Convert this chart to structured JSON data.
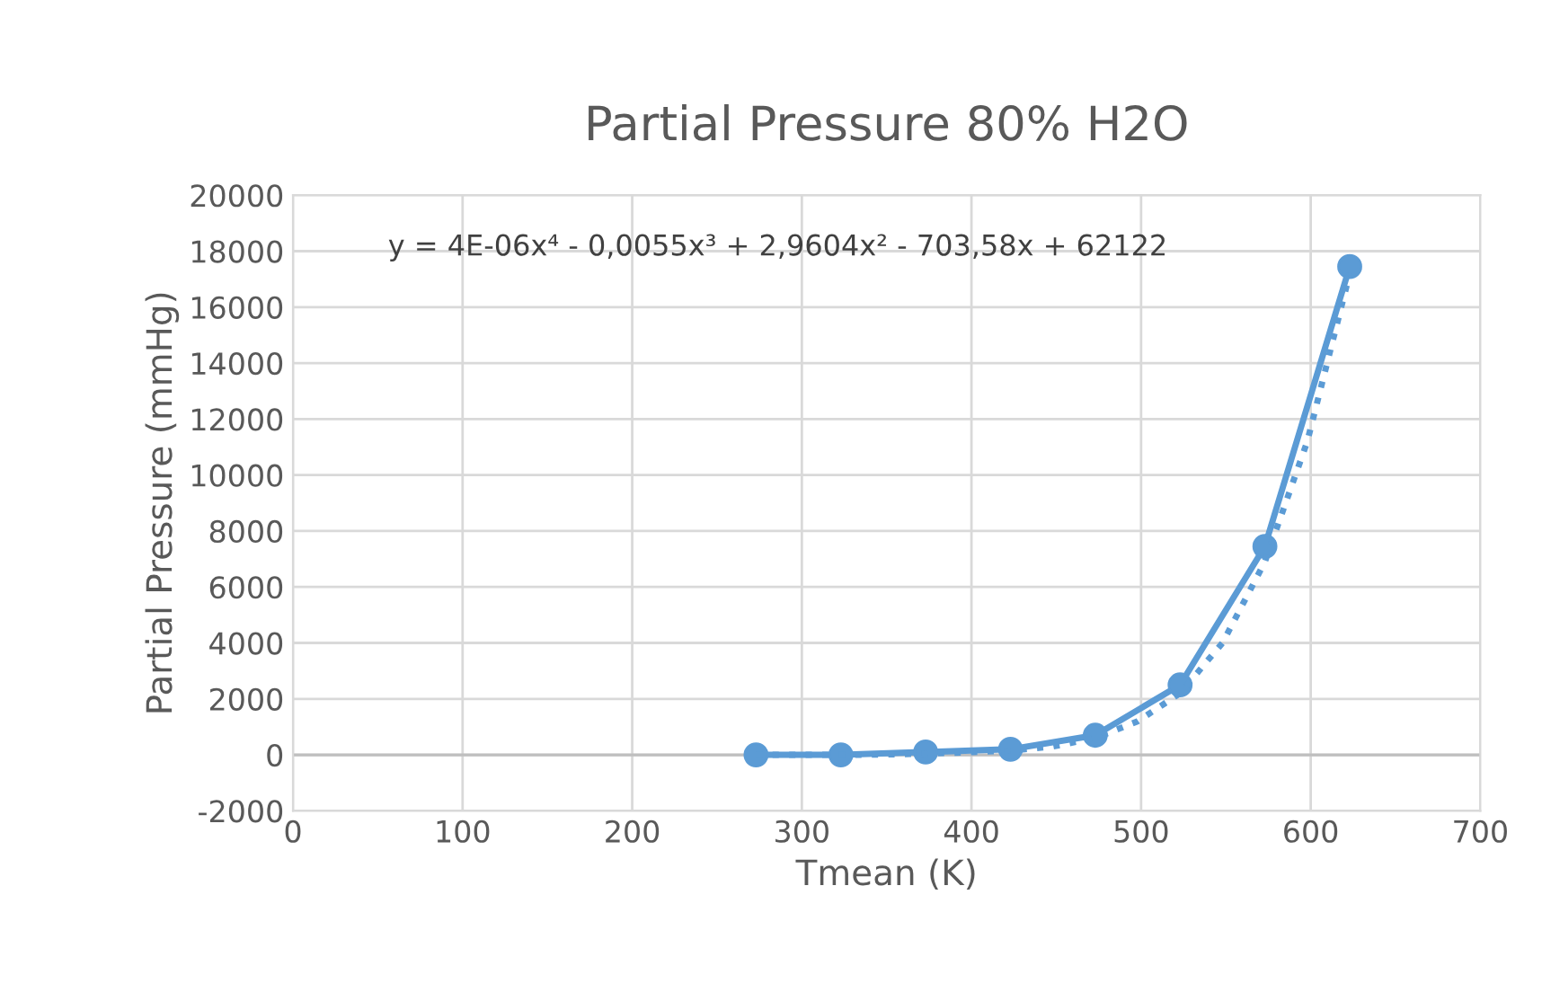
{
  "chart_data": {
    "type": "line",
    "title": "Partial Pressure 80% H2O",
    "xlabel": "Tmean (K)",
    "ylabel": "Partial Pressure (mmHg)",
    "annotations": [
      "y = 4E-06x⁴ - 0,0055x³ + 2,9604x² - 703,58x + 62122"
    ],
    "series": [
      {
        "color": "#5b9bd5",
        "marker": "circle",
        "line_style": "solid",
        "x": [
          273,
          323,
          373,
          423,
          473,
          523,
          573,
          623
        ],
        "values": [
          0,
          0,
          100,
          200,
          700,
          2500,
          7450,
          17450
        ]
      },
      {
        "color": "#5b9bd5",
        "marker": "none",
        "line_style": "dotted",
        "x": [
          273,
          298,
          323,
          348,
          373,
          398,
          423,
          448,
          473,
          498,
          523,
          548,
          573,
          598,
          623
        ],
        "values": [
          0,
          0,
          0,
          10,
          40,
          90,
          150,
          300,
          600,
          1200,
          2200,
          4000,
          6900,
          11200,
          17200
        ]
      }
    ],
    "xlim": [
      0,
      700
    ],
    "xticks": [
      0,
      100,
      200,
      300,
      400,
      500,
      600,
      700
    ],
    "ylim": [
      -2000,
      20000
    ],
    "yticks": [
      -2000,
      0,
      2000,
      4000,
      6000,
      8000,
      10000,
      12000,
      14000,
      16000,
      18000,
      20000
    ],
    "grid": true,
    "legend": false
  }
}
